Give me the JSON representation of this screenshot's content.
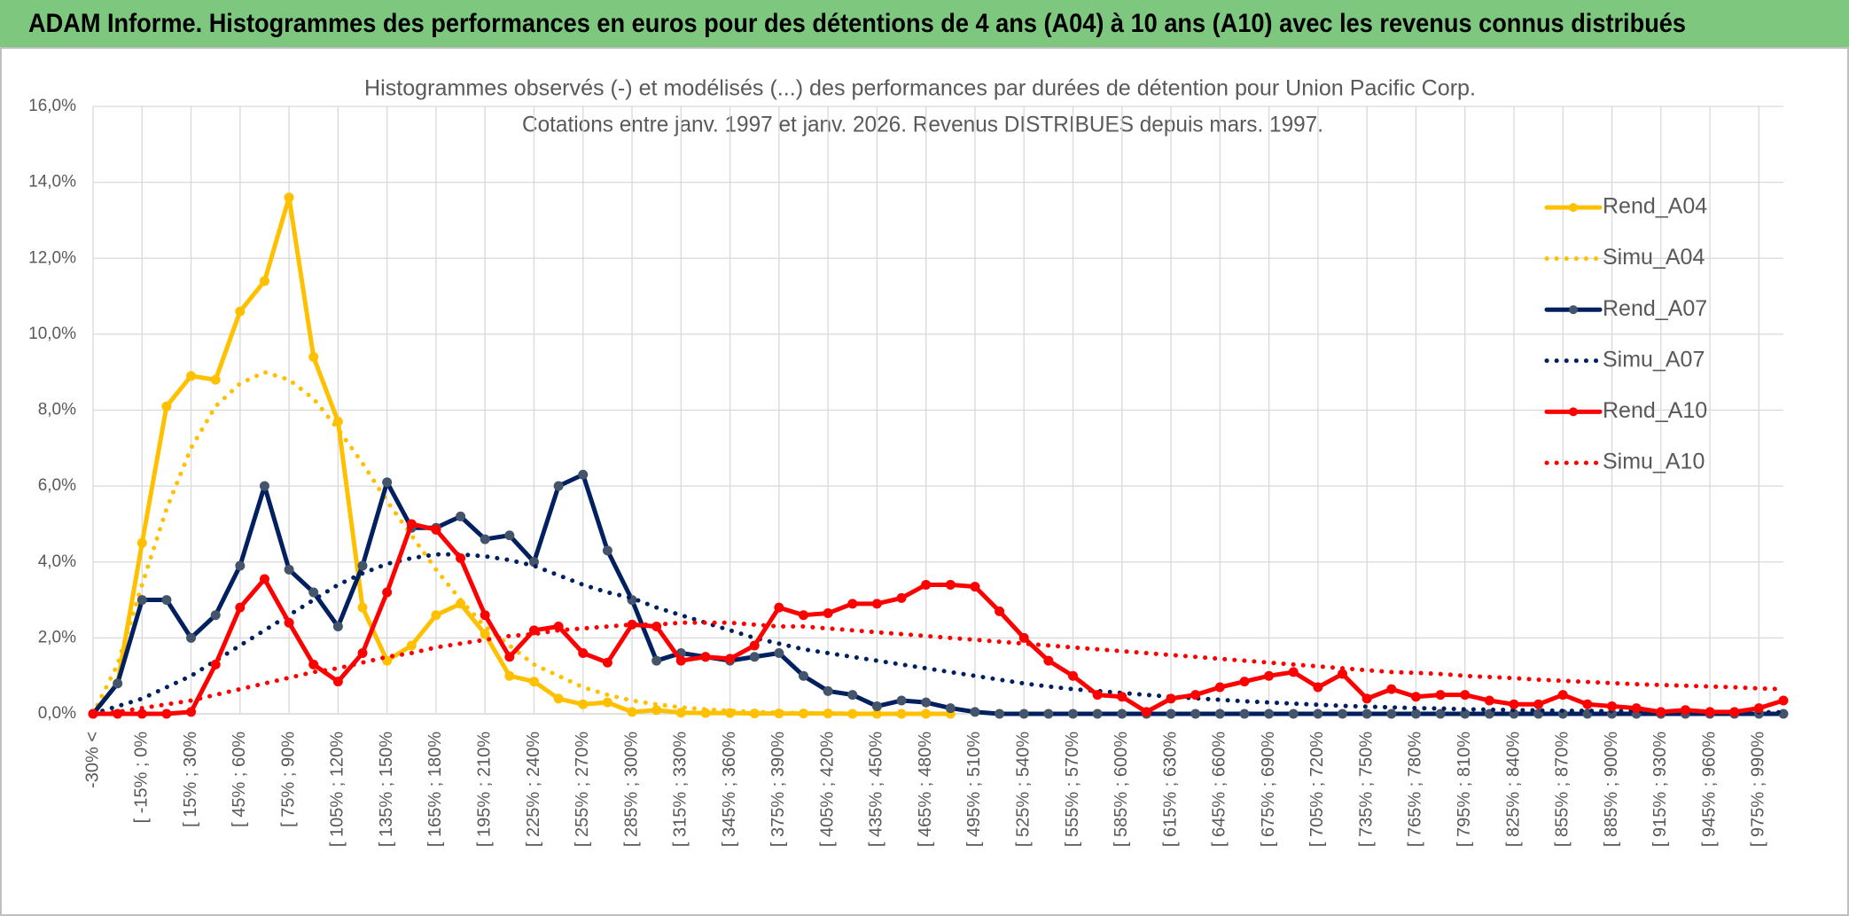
{
  "chart_data": {
    "type": "line",
    "header": "ADAM Informe. Histogrammes des performances en euros pour des détentions de 4 ans (A04) à 10 ans (A10) avec les revenus connus distribués",
    "title": "Histogrammes observés (-) et modélisés (...) des performances par durées de détention pour Union Pacific Corp.",
    "subtitle": "Cotations entre janv. 1997 et janv. 2026. Revenus DISTRIBUES depuis mars. 1997.",
    "categories": [
      "-30% <",
      null,
      "[ -15% ; 0%",
      null,
      "[ 15% ; 30%",
      null,
      "[ 45% ; 60%",
      null,
      "[ 75% ; 90%",
      null,
      "[ 105% ; 120%",
      null,
      "[ 135% ; 150%",
      null,
      "[ 165% ; 180%",
      null,
      "[ 195% ; 210%",
      null,
      "[ 225% ; 240%",
      null,
      "[ 255% ; 270%",
      null,
      "[ 285% ; 300%",
      null,
      "[ 315% ; 330%",
      null,
      "[ 345% ; 360%",
      null,
      "[ 375% ; 390%",
      null,
      "[ 405% ; 420%",
      null,
      "[ 435% ; 450%",
      null,
      "[ 465% ; 480%",
      null,
      "[ 495% ; 510%",
      null,
      "[ 525% ; 540%",
      null,
      "[ 555% ; 570%",
      null,
      "[ 585% ; 600%",
      null,
      "[ 615% ; 630%",
      null,
      "[ 645% ; 660%",
      null,
      "[ 675% ; 690%",
      null,
      "[ 705% ; 720%",
      null,
      "[ 735% ; 750%",
      null,
      "[ 765% ; 780%",
      null,
      "[ 795% ; 810%",
      null,
      "[ 825% ; 840%",
      null,
      "[ 855% ; 870%",
      null,
      "[ 885% ; 900%",
      null,
      "[ 915% ; 930%",
      null,
      "[ 945% ; 960%",
      null,
      "[ 975% ; 990%",
      null
    ],
    "series": [
      {
        "name": "Rend_A04",
        "color": "#ffc000",
        "style": "solid",
        "markers": true,
        "marker_color": "#ffc000",
        "values": [
          0,
          0.8,
          4.5,
          8.1,
          8.9,
          8.8,
          10.6,
          11.4,
          13.6,
          9.4,
          7.7,
          2.8,
          1.4,
          1.8,
          2.6,
          2.9,
          2.1,
          1.0,
          0.85,
          0.4,
          0.25,
          0.3,
          0.05,
          0.1,
          0.03,
          0.02,
          0.02,
          0.01,
          0.01,
          0.01,
          0.01,
          0,
          0,
          0,
          0,
          0,
          null,
          null,
          null,
          null,
          null,
          null,
          null,
          null,
          null,
          null,
          null,
          null,
          null,
          null,
          null,
          null,
          null,
          null,
          null,
          null,
          null,
          null,
          null,
          null,
          null,
          null,
          null,
          null,
          null,
          null,
          null,
          null,
          null,
          null
        ]
      },
      {
        "name": "Simu_A04",
        "color": "#ffc000",
        "style": "dotted",
        "markers": false,
        "values": [
          0,
          1.3,
          3.4,
          5.4,
          7.0,
          8.1,
          8.7,
          9.0,
          8.8,
          8.3,
          7.5,
          6.6,
          5.6,
          4.7,
          3.8,
          3.0,
          2.3,
          1.8,
          1.3,
          1.0,
          0.7,
          0.5,
          0.35,
          0.25,
          0.17,
          0.12,
          0.08,
          0.05,
          0.03,
          0.02,
          0.01,
          0.01,
          0,
          0,
          0,
          0,
          null,
          null,
          null,
          null,
          null,
          null,
          null,
          null,
          null,
          null,
          null,
          null,
          null,
          null,
          null,
          null,
          null,
          null,
          null,
          null,
          null,
          null,
          null,
          null,
          null,
          null,
          null,
          null,
          null,
          null,
          null,
          null,
          null,
          null
        ]
      },
      {
        "name": "Rend_A07",
        "color": "#002060",
        "style": "solid",
        "markers": true,
        "marker_color": "#44546a",
        "values": [
          0,
          0.8,
          3.0,
          3.0,
          2.0,
          2.6,
          3.9,
          6.0,
          3.8,
          3.2,
          2.3,
          3.9,
          6.1,
          4.9,
          4.9,
          5.2,
          4.6,
          4.7,
          4.0,
          6.0,
          6.3,
          4.3,
          3.0,
          1.4,
          1.6,
          1.5,
          1.4,
          1.5,
          1.6,
          1.0,
          0.6,
          0.5,
          0.2,
          0.35,
          0.3,
          0.15,
          0.05,
          0,
          0,
          0,
          0,
          0,
          0,
          0,
          0,
          0,
          0,
          0,
          0,
          0,
          0,
          0,
          0,
          0,
          0,
          0,
          0,
          0,
          0,
          0,
          0,
          0,
          0,
          0,
          0,
          0,
          0,
          0,
          0,
          0
        ]
      },
      {
        "name": "Simu_A07",
        "color": "#002060",
        "style": "dotted",
        "markers": false,
        "values": [
          0,
          0.2,
          0.4,
          0.7,
          1.0,
          1.4,
          1.8,
          2.2,
          2.6,
          3.0,
          3.4,
          3.7,
          3.95,
          4.1,
          4.2,
          4.2,
          4.15,
          4.05,
          3.9,
          3.65,
          3.4,
          3.2,
          3.05,
          2.8,
          2.6,
          2.4,
          2.2,
          2.0,
          1.85,
          1.7,
          1.6,
          1.5,
          1.4,
          1.3,
          1.2,
          1.1,
          1.0,
          0.9,
          0.8,
          0.72,
          0.65,
          0.6,
          0.55,
          0.5,
          0.45,
          0.41,
          0.37,
          0.33,
          0.3,
          0.27,
          0.24,
          0.21,
          0.19,
          0.17,
          0.15,
          0.14,
          0.12,
          0.11,
          0.1,
          0.09,
          0.08,
          0.08,
          0.07,
          0.07,
          0.06,
          0.06,
          0.05,
          0.05,
          0.04,
          0.04
        ]
      },
      {
        "name": "Rend_A10",
        "color": "#ff0000",
        "style": "solid",
        "markers": true,
        "marker_color": "#ff0000",
        "values": [
          0,
          0,
          0,
          0,
          0.05,
          1.3,
          2.8,
          3.55,
          2.4,
          1.3,
          0.85,
          1.6,
          3.2,
          5.0,
          4.85,
          4.1,
          2.6,
          1.5,
          2.2,
          2.3,
          1.6,
          1.35,
          2.35,
          2.3,
          1.4,
          1.5,
          1.45,
          1.8,
          2.8,
          2.6,
          2.65,
          2.9,
          2.9,
          3.05,
          3.4,
          3.4,
          3.35,
          2.7,
          2.0,
          1.4,
          1.0,
          0.5,
          0.45,
          0.05,
          0.4,
          0.5,
          0.7,
          0.85,
          1.0,
          1.1,
          0.7,
          1.05,
          0.4,
          0.65,
          0.45,
          0.5,
          0.5,
          0.35,
          0.25,
          0.25,
          0.5,
          0.25,
          0.2,
          0.15,
          0.05,
          0.1,
          0.05,
          0.05,
          0.15,
          0.35
        ]
      },
      {
        "name": "Simu_A10",
        "color": "#ff0000",
        "style": "dotted",
        "markers": false,
        "values": [
          0,
          0.05,
          0.15,
          0.25,
          0.35,
          0.5,
          0.65,
          0.8,
          0.95,
          1.1,
          1.2,
          1.35,
          1.5,
          1.6,
          1.75,
          1.85,
          1.95,
          2.05,
          2.1,
          2.2,
          2.25,
          2.3,
          2.35,
          2.35,
          2.4,
          2.4,
          2.4,
          2.35,
          2.3,
          2.3,
          2.25,
          2.2,
          2.15,
          2.1,
          2.05,
          2.0,
          1.95,
          1.9,
          1.85,
          1.8,
          1.75,
          1.7,
          1.65,
          1.6,
          1.55,
          1.5,
          1.45,
          1.4,
          1.35,
          1.3,
          1.25,
          1.2,
          1.15,
          1.1,
          1.08,
          1.05,
          1.0,
          0.97,
          0.94,
          0.9,
          0.87,
          0.84,
          0.81,
          0.78,
          0.76,
          0.74,
          0.72,
          0.7,
          0.67,
          0.65
        ]
      }
    ],
    "ylim": [
      0,
      16
    ],
    "yticks": [
      {
        "value": 0,
        "label": "0,0%"
      },
      {
        "value": 2,
        "label": "2,0%"
      },
      {
        "value": 4,
        "label": "4,0%"
      },
      {
        "value": 6,
        "label": "6,0%"
      },
      {
        "value": 8,
        "label": "8,0%"
      },
      {
        "value": 10,
        "label": "10,0%"
      },
      {
        "value": 12,
        "label": "12,0%"
      },
      {
        "value": 14,
        "label": "14,0%"
      },
      {
        "value": 16,
        "label": "16,0%"
      }
    ],
    "grid": true,
    "legend": "right"
  }
}
